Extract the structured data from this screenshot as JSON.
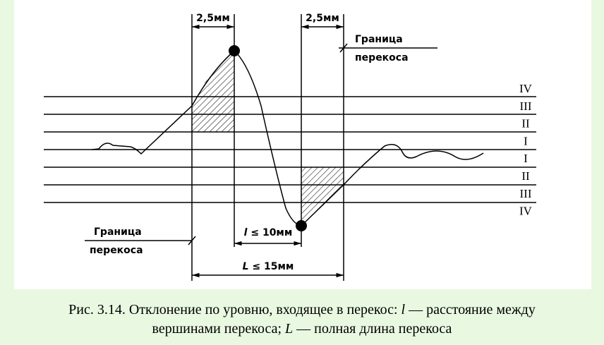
{
  "labels": {
    "top_left_dim": "2,5мм",
    "top_right_dim": "2,5мм",
    "boundary_right": [
      "Граница",
      "перекоса"
    ],
    "boundary_left": [
      "Граница",
      "перекоса"
    ],
    "levels": [
      "IV",
      "III",
      "II",
      "I",
      "I",
      "II",
      "III",
      "IV"
    ],
    "l_dim": [
      "l",
      "≤ 10мм"
    ],
    "L_dim": [
      "L",
      "≤ 15мм"
    ]
  },
  "caption": {
    "line1": [
      "Рис. 3.14. Отклонение по уровню, входящее в перекос: ",
      "l",
      " — расстояние между"
    ],
    "line2": [
      "вершинами перекоса; ",
      "L",
      " — полная длина перекоса"
    ]
  }
}
